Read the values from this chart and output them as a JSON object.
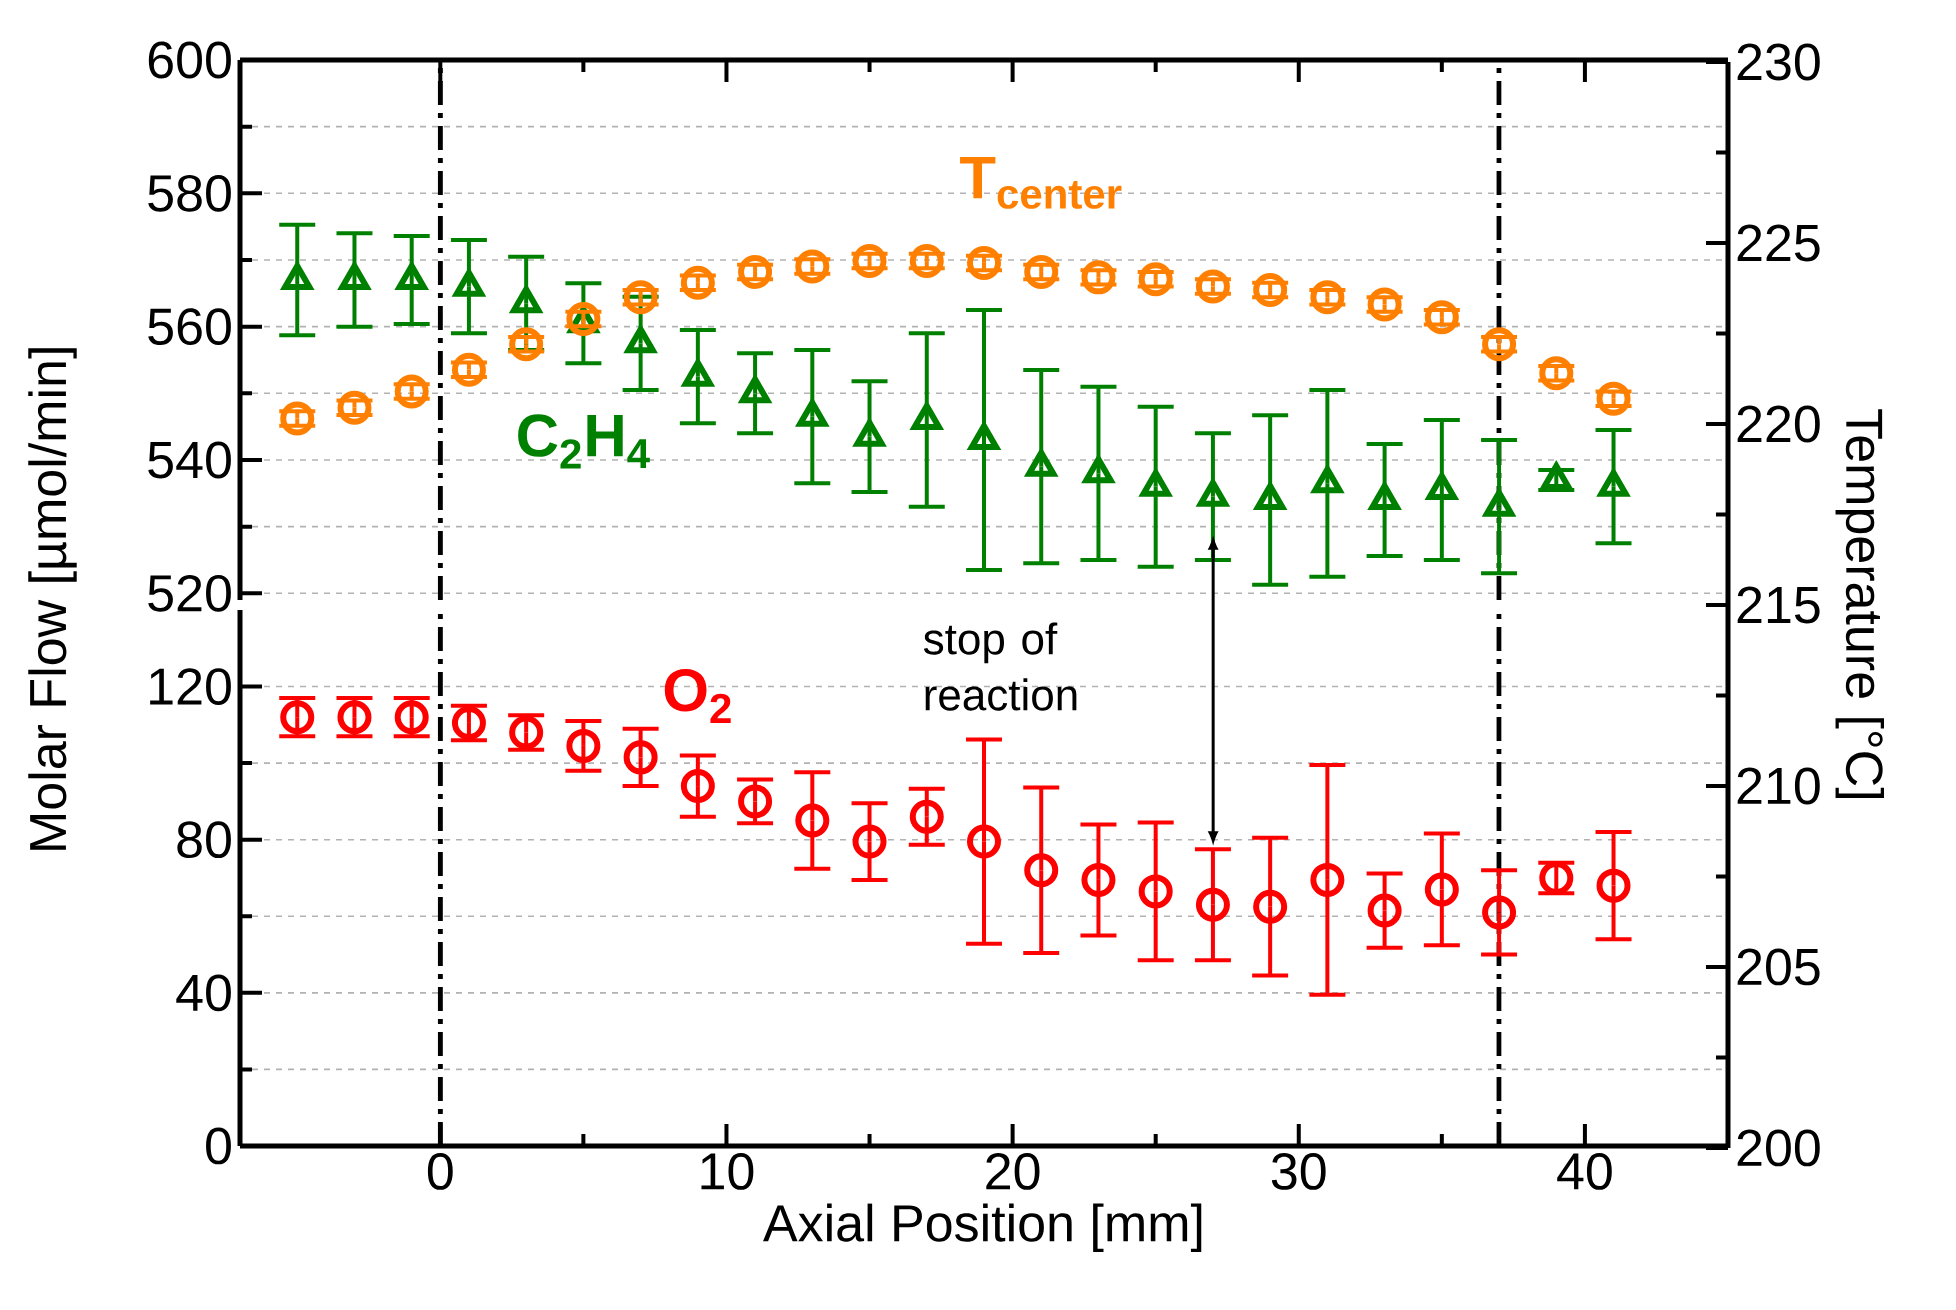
{
  "chart_data": [
    {
      "type": "scatter",
      "xlim": [
        -7,
        45
      ],
      "xticks": [
        0,
        10,
        20,
        30,
        40
      ],
      "ylim": [
        519,
        600
      ],
      "yticks": [
        520,
        540,
        560,
        580,
        600
      ],
      "y2lim": [
        200,
        230
      ],
      "y2ticks": [
        200,
        205,
        210,
        215,
        220,
        225,
        230
      ],
      "y2label": "Temperature [°C]",
      "tick_labels": "y",
      "grid": "y",
      "x": [
        -5,
        -3,
        -1,
        1,
        3,
        5,
        7,
        9,
        11,
        13,
        15,
        17,
        19,
        21,
        23,
        25,
        27,
        29,
        31,
        33,
        35,
        37,
        39,
        41
      ],
      "ref_lines": [
        {
          "axis": "x",
          "value": 0,
          "line_style": "dashdot"
        },
        {
          "axis": "x",
          "value": 37,
          "line_style": "dashdot"
        }
      ],
      "series": [
        {
          "name": "C$_{2}$H$_{4}$",
          "color": "#008000",
          "marker": "triangle",
          "values": [
            567,
            567,
            567,
            566,
            563.5,
            560.5,
            557.5,
            552.5,
            550,
            546.5,
            543.5,
            546,
            543,
            539,
            538,
            536,
            534.5,
            534,
            536.5,
            534,
            535.5,
            533,
            537,
            536
          ],
          "errors": [
            8.3,
            7,
            6.6,
            7,
            7,
            6,
            7,
            7,
            6,
            10,
            8.3,
            13,
            19.5,
            14.5,
            13,
            12,
            9.5,
            12.7,
            14,
            8.4,
            10.5,
            10,
            1.5,
            8.5
          ]
        },
        {
          "name": "T$_{center}$",
          "color": "#ff8000",
          "marker": "circle",
          "axis": "y2",
          "values": [
            220.15,
            220.45,
            220.9,
            221.5,
            222.2,
            222.9,
            223.5,
            223.9,
            224.2,
            224.35,
            224.5,
            224.5,
            224.45,
            224.2,
            224.05,
            224,
            223.8,
            223.7,
            223.5,
            223.3,
            222.95,
            222.2,
            221.4,
            220.7
          ],
          "errors": [
            0.2,
            0.2,
            0.2,
            0.2,
            0.2,
            0.2,
            0.2,
            0.2,
            0.2,
            0.2,
            0.2,
            0.2,
            0.2,
            0.2,
            0.2,
            0.2,
            0.2,
            0.2,
            0.2,
            0.2,
            0.2,
            0.2,
            0.2,
            0.2
          ]
        }
      ]
    },
    {
      "type": "scatter",
      "xlim": [
        -7,
        45
      ],
      "xticks": [
        0,
        10,
        20,
        30,
        40
      ],
      "ylim": [
        0,
        140
      ],
      "yticks": [
        0,
        40,
        80,
        120
      ],
      "xlabel": "Axial Position [mm]",
      "ylabel": "Molar Flow [µmol/min]",
      "grid": "y",
      "x": [
        -5,
        -3,
        -1,
        1,
        3,
        5,
        7,
        9,
        11,
        13,
        15,
        17,
        19,
        21,
        23,
        25,
        27,
        29,
        31,
        33,
        35,
        37,
        39,
        41
      ],
      "ref_lines": [
        {
          "axis": "x",
          "value": 0,
          "line_style": "dashdot"
        },
        {
          "axis": "x",
          "value": 37,
          "line_style": "dashdot"
        }
      ],
      "annotations": [
        "stop of reaction"
      ],
      "series": [
        {
          "name": "O$_{2}$",
          "color": "#ff0000",
          "marker": "circle",
          "values": [
            112,
            112,
            112,
            110.5,
            108,
            104.5,
            101.5,
            94,
            90,
            85,
            79.5,
            86,
            79.5,
            72,
            69.5,
            66.5,
            63,
            62.5,
            69.5,
            61.5,
            67,
            61,
            70,
            68
          ],
          "errors": [
            5,
            5,
            5,
            4.5,
            4.5,
            6.5,
            7.5,
            8,
            5.7,
            12.6,
            10,
            7.3,
            26.7,
            21.6,
            14.5,
            18,
            14.5,
            18,
            30,
            9.7,
            14.6,
            11,
            4,
            14
          ]
        }
      ]
    }
  ]
}
